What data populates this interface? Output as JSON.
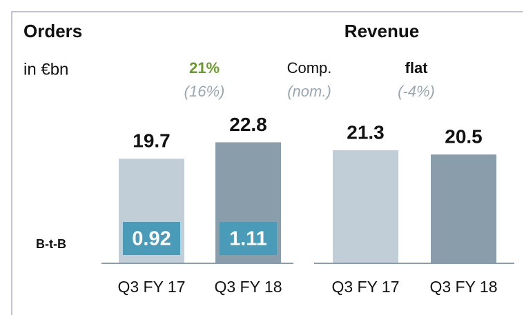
{
  "unit": "in €bn",
  "growth_legend": [
    "Comp.",
    "(nom.)"
  ],
  "chart_data": [
    {
      "type": "bar",
      "title": "Orders",
      "categories": [
        "Q3 FY 17",
        "Q3 FY 18"
      ],
      "values": [
        19.7,
        22.8
      ],
      "colors": [
        "#c1ced8",
        "#8a9dab"
      ],
      "growth": [
        "21%",
        "(16%)"
      ],
      "book_to_bill": {
        "label": "B-t-B",
        "values": [
          0.92,
          1.11
        ],
        "color": "#4a9bb8"
      }
    },
    {
      "type": "bar",
      "title": "Revenue",
      "categories": [
        "Q3 FY 17",
        "Q3 FY 18"
      ],
      "values": [
        21.3,
        20.5
      ],
      "colors": [
        "#c1ced8",
        "#8a9dab"
      ],
      "growth": [
        "flat",
        "(-4%)"
      ]
    }
  ]
}
